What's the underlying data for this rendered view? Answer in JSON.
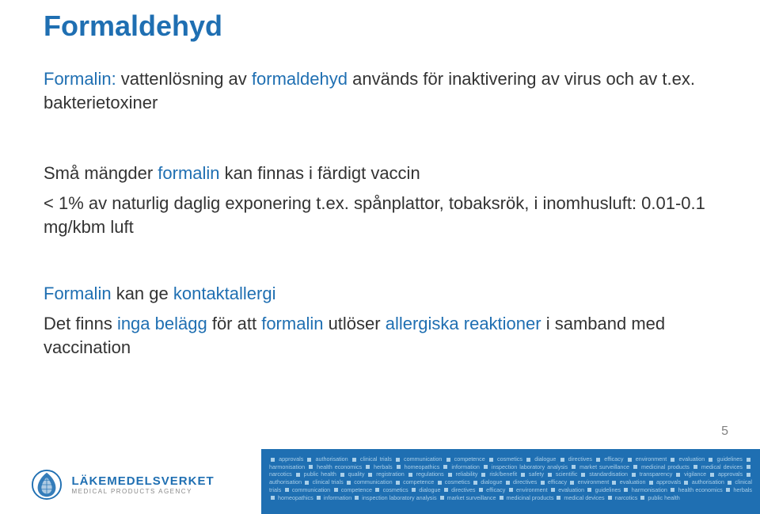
{
  "title": "Formaldehyd",
  "p1_pre": "Formalin:",
  "p1_mid1": " vattenlösning av ",
  "p1_hl1": "formaldehyd",
  "p1_mid2": " används för inaktivering av virus och av t.ex. bakterietoxiner",
  "p2_pre": "Små mängder ",
  "p2_hl": "formalin",
  "p2_post": " kan finnas i färdigt vaccin",
  "p3": "< 1% av naturlig daglig exponering t.ex. spånplattor, tobaksrök, i inomhusluft: 0.01-0.1 mg/kbm luft",
  "p4_hl1": "Formalin",
  "p4_mid": " kan ge ",
  "p4_hl2": "kontaktallergi",
  "p5_pre": "Det finns ",
  "p5_hl1": "inga belägg",
  "p5_mid1": " för att ",
  "p5_hl2": "formalin",
  "p5_mid2": " utlöser ",
  "p5_hl3": "allergiska reaktioner",
  "p5_post": " i samband med vaccination",
  "pagenum": "5",
  "logo_name": "LÄKEMEDELSVERKET",
  "logo_sub": "MEDICAL PRODUCTS AGENCY",
  "footer_words": [
    "approvals",
    "authorisation",
    "clinical trials",
    "communication",
    "competence",
    "cosmetics",
    "dialogue",
    "directives",
    "efficacy",
    "environment",
    "evaluation",
    "guidelines",
    "harmonisation",
    "health economics",
    "herbals",
    "homeopathics",
    "information",
    "inspection laboratory analysis",
    "market surveillance",
    "medicinal products",
    "medical devices",
    "narcotics",
    "public health",
    "quality",
    "registration",
    "regulations",
    "reliability",
    "risk/benefit",
    "safety",
    "scientific",
    "standardisation",
    "transparency",
    "vigilance",
    "approvals",
    "authorisation",
    "clinical trials",
    "communication",
    "competence",
    "cosmetics",
    "dialogue",
    "directives",
    "efficacy",
    "environment",
    "evaluation",
    "approvals",
    "authorisation",
    "clinical trials",
    "communication",
    "competence",
    "cosmetics",
    "dialogue",
    "directives",
    "efficacy",
    "environment",
    "evaluation",
    "guidelines",
    "harmonisation",
    "health economics",
    "herbals",
    "homeopathics",
    "information",
    "inspection laboratory analysis",
    "market surveillance",
    "medicinal products",
    "medical devices",
    "narcotics",
    "public health"
  ],
  "colors": {
    "title": "#1f6fb2",
    "highlight": "#1f6fb2",
    "text": "#333333",
    "footer_bg": "#1f6fb2",
    "footer_text": "#a9cfe9",
    "logo_sub": "#888888"
  }
}
